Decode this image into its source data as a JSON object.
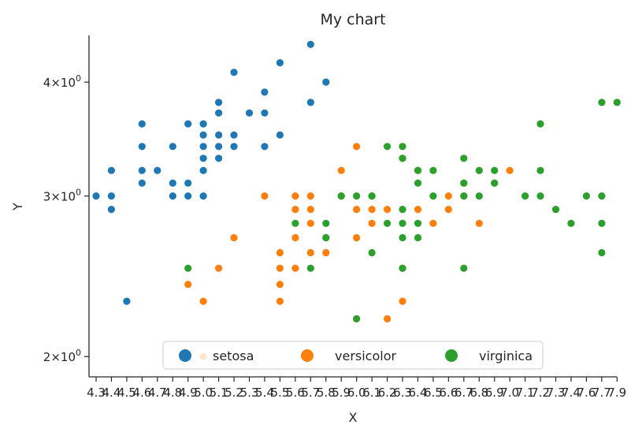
{
  "chart_data": {
    "type": "scatter",
    "title": "My chart",
    "xlabel": "X",
    "ylabel": "Y",
    "yscale": "log",
    "x_categories": [
      "4.3",
      "4.4",
      "4.5",
      "4.6",
      "4.7",
      "4.8",
      "4.9",
      "5.0",
      "5.1",
      "5.2",
      "5.3",
      "5.4",
      "5.5",
      "5.6",
      "5.7",
      "5.8",
      "5.9",
      "6.0",
      "6.1",
      "6.2",
      "6.3",
      "6.4",
      "6.5",
      "6.6",
      "6.7",
      "6.8",
      "6.9",
      "7.0",
      "7.1",
      "7.2",
      "7.3",
      "7.4",
      "7.6",
      "7.7",
      "7.9"
    ],
    "ylim": [
      1.9,
      4.5
    ],
    "yticks": [
      {
        "value": 2,
        "base": "2×10",
        "exp": "0"
      },
      {
        "value": 3,
        "base": "3×10",
        "exp": "0"
      },
      {
        "value": 4,
        "base": "4×10",
        "exp": "0"
      }
    ],
    "grid": false,
    "legend_position": "lower center",
    "series": [
      {
        "name": "setosa",
        "color": "#1f77b4",
        "points": [
          [
            "4.3",
            3.0
          ],
          [
            "4.4",
            2.9
          ],
          [
            "4.4",
            3.0
          ],
          [
            "4.4",
            3.2
          ],
          [
            "4.5",
            2.3
          ],
          [
            "4.6",
            3.1
          ],
          [
            "4.6",
            3.2
          ],
          [
            "4.6",
            3.4
          ],
          [
            "4.6",
            3.6
          ],
          [
            "4.7",
            3.2
          ],
          [
            "4.8",
            3.0
          ],
          [
            "4.8",
            3.1
          ],
          [
            "4.8",
            3.4
          ],
          [
            "4.9",
            3.0
          ],
          [
            "4.9",
            3.1
          ],
          [
            "4.9",
            3.6
          ],
          [
            "5.0",
            3.0
          ],
          [
            "5.0",
            3.2
          ],
          [
            "5.0",
            3.3
          ],
          [
            "5.0",
            3.4
          ],
          [
            "5.0",
            3.5
          ],
          [
            "5.0",
            3.6
          ],
          [
            "5.1",
            3.3
          ],
          [
            "5.1",
            3.4
          ],
          [
            "5.1",
            3.5
          ],
          [
            "5.1",
            3.7
          ],
          [
            "5.1",
            3.8
          ],
          [
            "5.2",
            3.4
          ],
          [
            "5.2",
            3.5
          ],
          [
            "5.2",
            4.1
          ],
          [
            "5.3",
            3.7
          ],
          [
            "5.4",
            3.4
          ],
          [
            "5.4",
            3.7
          ],
          [
            "5.4",
            3.9
          ],
          [
            "5.5",
            3.5
          ],
          [
            "5.5",
            4.2
          ],
          [
            "5.7",
            3.8
          ],
          [
            "5.7",
            4.4
          ],
          [
            "5.8",
            4.0
          ]
        ]
      },
      {
        "name": "versicolor",
        "color": "#ff7f0e",
        "points": [
          [
            "4.9",
            2.4
          ],
          [
            "5.0",
            2.0
          ],
          [
            "5.0",
            2.3
          ],
          [
            "5.1",
            2.5
          ],
          [
            "5.2",
            2.7
          ],
          [
            "5.4",
            3.0
          ],
          [
            "5.5",
            2.3
          ],
          [
            "5.5",
            2.4
          ],
          [
            "5.5",
            2.5
          ],
          [
            "5.5",
            2.6
          ],
          [
            "5.6",
            2.5
          ],
          [
            "5.6",
            2.7
          ],
          [
            "5.6",
            2.9
          ],
          [
            "5.6",
            3.0
          ],
          [
            "5.7",
            2.6
          ],
          [
            "5.7",
            2.8
          ],
          [
            "5.7",
            2.9
          ],
          [
            "5.7",
            3.0
          ],
          [
            "5.8",
            2.6
          ],
          [
            "5.8",
            2.7
          ],
          [
            "5.9",
            3.0
          ],
          [
            "5.9",
            3.2
          ],
          [
            "6.0",
            2.2
          ],
          [
            "6.0",
            2.7
          ],
          [
            "6.0",
            2.9
          ],
          [
            "6.0",
            3.4
          ],
          [
            "6.1",
            2.8
          ],
          [
            "6.1",
            2.9
          ],
          [
            "6.1",
            3.0
          ],
          [
            "6.2",
            2.2
          ],
          [
            "6.2",
            2.9
          ],
          [
            "6.3",
            2.3
          ],
          [
            "6.3",
            2.5
          ],
          [
            "6.3",
            3.3
          ],
          [
            "6.4",
            2.9
          ],
          [
            "6.4",
            3.2
          ],
          [
            "6.5",
            2.8
          ],
          [
            "6.6",
            2.9
          ],
          [
            "6.6",
            3.0
          ],
          [
            "6.7",
            3.0
          ],
          [
            "6.7",
            3.1
          ],
          [
            "6.8",
            2.8
          ],
          [
            "6.9",
            3.1
          ],
          [
            "7.0",
            3.2
          ]
        ]
      },
      {
        "name": "virginica",
        "color": "#2ca02c",
        "points": [
          [
            "4.9",
            2.5
          ],
          [
            "5.6",
            2.8
          ],
          [
            "5.7",
            2.5
          ],
          [
            "5.8",
            2.7
          ],
          [
            "5.8",
            2.8
          ],
          [
            "5.9",
            3.0
          ],
          [
            "6.0",
            2.2
          ],
          [
            "6.0",
            3.0
          ],
          [
            "6.1",
            2.6
          ],
          [
            "6.1",
            3.0
          ],
          [
            "6.2",
            2.8
          ],
          [
            "6.2",
            3.4
          ],
          [
            "6.3",
            2.5
          ],
          [
            "6.3",
            2.7
          ],
          [
            "6.3",
            2.8
          ],
          [
            "6.3",
            2.9
          ],
          [
            "6.3",
            3.3
          ],
          [
            "6.3",
            3.4
          ],
          [
            "6.4",
            2.7
          ],
          [
            "6.4",
            2.8
          ],
          [
            "6.4",
            3.1
          ],
          [
            "6.4",
            3.2
          ],
          [
            "6.5",
            3.0
          ],
          [
            "6.5",
            3.2
          ],
          [
            "6.7",
            2.5
          ],
          [
            "6.7",
            3.0
          ],
          [
            "6.7",
            3.1
          ],
          [
            "6.7",
            3.3
          ],
          [
            "6.8",
            3.0
          ],
          [
            "6.8",
            3.2
          ],
          [
            "6.9",
            3.1
          ],
          [
            "6.9",
            3.2
          ],
          [
            "7.1",
            3.0
          ],
          [
            "7.2",
            3.0
          ],
          [
            "7.2",
            3.2
          ],
          [
            "7.2",
            3.6
          ],
          [
            "7.3",
            2.9
          ],
          [
            "7.4",
            2.8
          ],
          [
            "7.6",
            3.0
          ],
          [
            "7.7",
            2.6
          ],
          [
            "7.7",
            2.8
          ],
          [
            "7.7",
            3.0
          ],
          [
            "7.7",
            3.8
          ],
          [
            "7.9",
            3.8
          ]
        ]
      }
    ]
  }
}
